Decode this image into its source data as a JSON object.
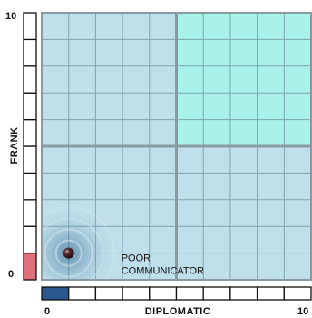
{
  "chart_data": {
    "type": "scatter",
    "title": "",
    "xlabel": "DIPLOMATIC",
    "ylabel": "FRANK",
    "xlim": [
      0,
      10
    ],
    "ylim": [
      0,
      10
    ],
    "x_ticks": [
      "0",
      "10"
    ],
    "y_ticks": [
      "0",
      "10"
    ],
    "grid": true,
    "highlight_quadrant": "top-right",
    "points": [
      {
        "x": 1,
        "y": 1,
        "label_lines": [
          "POOR",
          "COMMUNICATOR"
        ]
      }
    ],
    "x_meter_value": 1,
    "y_meter_value": 1,
    "colors": {
      "plot_bg": "#bfe0ea",
      "highlight_bg": "#a8f2ea",
      "grid_minor": "#7fa3b3",
      "grid_major": "#8a9aa2",
      "x_meter_fill": "#2b5790",
      "y_meter_fill": "#e0707a",
      "point": "#3a1b20"
    }
  }
}
